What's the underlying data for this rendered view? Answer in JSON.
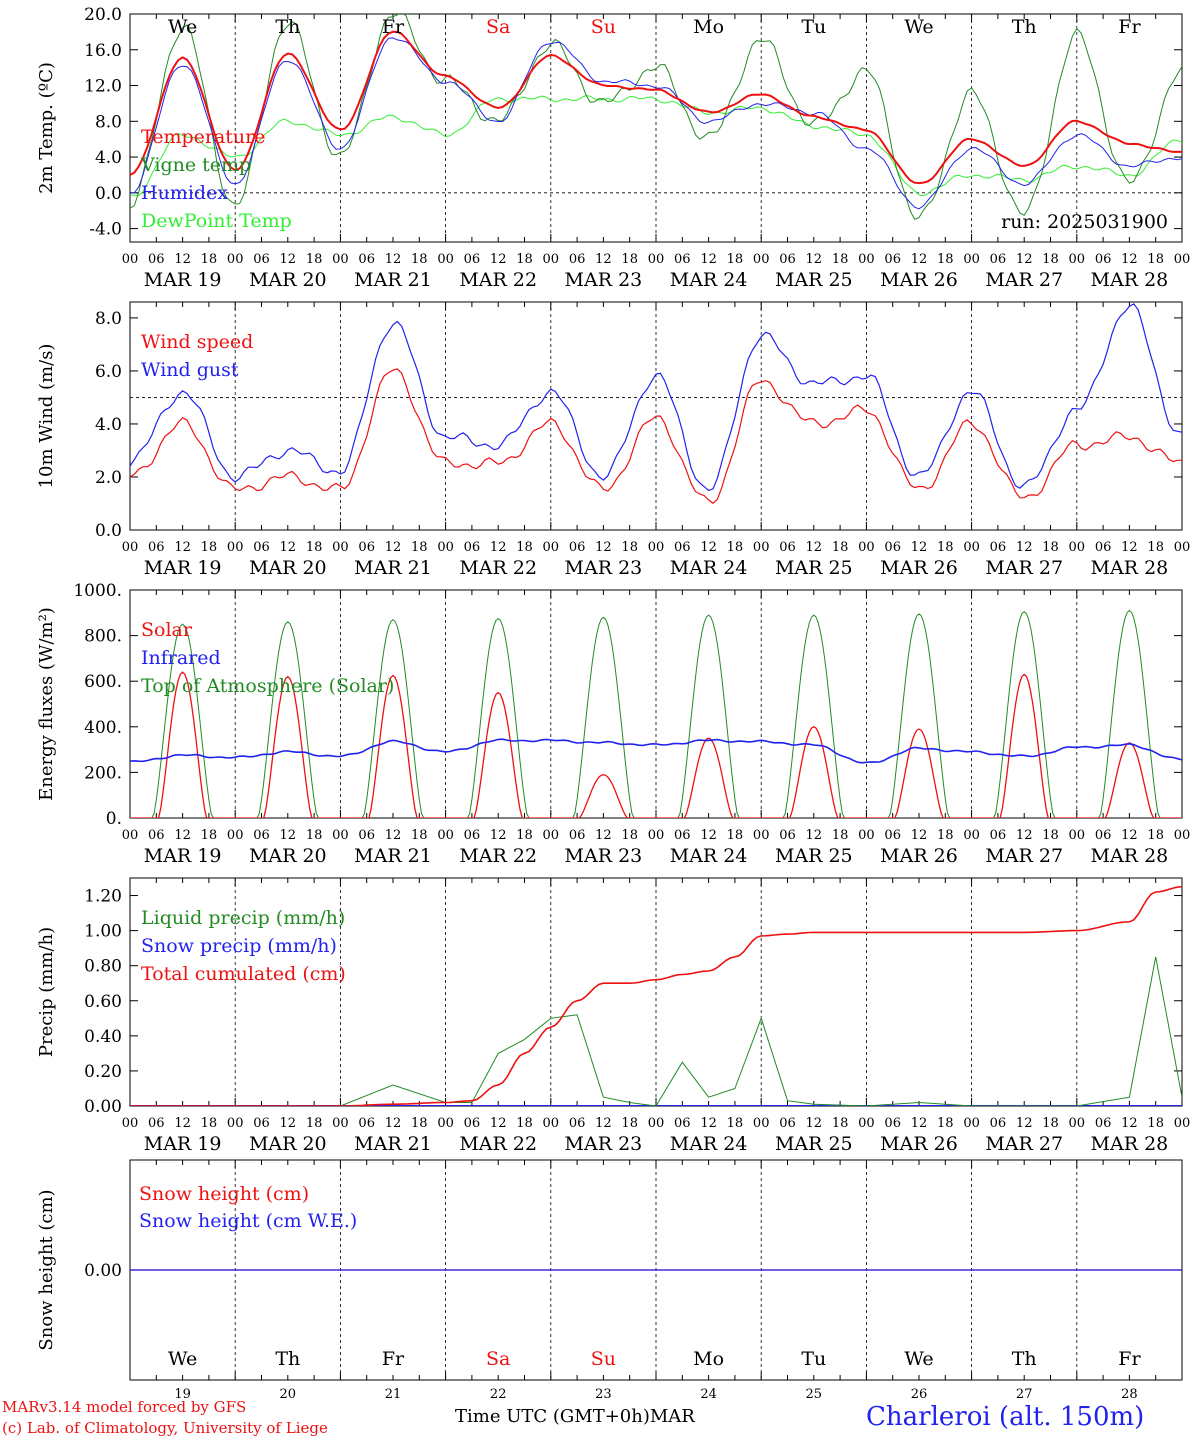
{
  "chart_data": [
    {
      "type": "line",
      "ylabel": "2m Temp. (ºC)",
      "ylim": [
        -5.5,
        20
      ],
      "yticks": [
        "20.0",
        "16.0",
        "12.0",
        "8.0",
        "4.0",
        "0.0",
        "-4.0"
      ],
      "tick_values": [
        20,
        16,
        12,
        8,
        4,
        0,
        -4
      ],
      "reference_line": 0,
      "annotation": "run: 2025031900",
      "x_hours": [
        0,
        12,
        24,
        36,
        48,
        60,
        72,
        84,
        96,
        108,
        120,
        132,
        144,
        156,
        168,
        180,
        192,
        204,
        216,
        228,
        240
      ],
      "series": [
        {
          "name": "Temperature",
          "color": "#ee1111",
          "values": [
            2.0,
            15.0,
            2.5,
            15.5,
            7.0,
            18.0,
            13.0,
            9.5,
            15.3,
            12.0,
            11.5,
            9.0,
            11.0,
            8.5,
            7.0,
            1.0,
            6.0,
            3.0,
            8.0,
            5.5,
            4.5
          ]
        },
        {
          "name": "Vigne temp",
          "color": "#228b22",
          "values": [
            -1.5,
            18.5,
            -1.5,
            19.0,
            4.0,
            20.0,
            12.5,
            8.0,
            16.5,
            10.0,
            14.0,
            6.0,
            17.0,
            7.5,
            13.5,
            -3.0,
            11.0,
            -2.5,
            17.5,
            1.0,
            13.5
          ]
        },
        {
          "name": "Humidex",
          "color": "#2222ee",
          "values": [
            0.0,
            14.5,
            1.0,
            15.0,
            5.0,
            17.5,
            12.5,
            8.0,
            17.0,
            12.5,
            12.0,
            8.0,
            10.0,
            9.0,
            5.0,
            -1.5,
            5.0,
            1.0,
            6.5,
            3.0,
            4.0
          ]
        },
        {
          "name": "DewPoint Temp",
          "color": "#33ee33",
          "values": [
            -0.5,
            6.5,
            4.0,
            8.0,
            6.5,
            8.5,
            6.5,
            10.5,
            10.5,
            10.5,
            10.5,
            9.0,
            9.5,
            7.5,
            6.5,
            0.0,
            2.0,
            1.5,
            3.0,
            2.0,
            6.0
          ]
        }
      ]
    },
    {
      "type": "line",
      "ylabel": "10m Wind (m/s)",
      "ylim": [
        0,
        8.6
      ],
      "yticks": [
        "8.0",
        "6.0",
        "4.0",
        "2.0",
        "0.0"
      ],
      "tick_values": [
        8,
        6,
        4,
        2,
        0
      ],
      "reference_line": 5,
      "x_hours": [
        0,
        12,
        24,
        36,
        48,
        60,
        72,
        84,
        96,
        108,
        120,
        132,
        144,
        156,
        168,
        180,
        192,
        204,
        216,
        228,
        240
      ],
      "series": [
        {
          "name": "Wind speed",
          "color": "#ee1111",
          "values": [
            2.0,
            4.0,
            1.5,
            2.0,
            1.5,
            6.0,
            2.5,
            2.5,
            4.0,
            1.5,
            4.2,
            1.0,
            5.6,
            4.0,
            4.5,
            1.5,
            4.0,
            1.2,
            3.2,
            3.5,
            2.5
          ]
        },
        {
          "name": "Wind gust",
          "color": "#2222ee",
          "values": [
            2.6,
            5.2,
            2.0,
            3.0,
            2.2,
            7.8,
            3.5,
            3.2,
            5.2,
            2.0,
            5.8,
            1.5,
            7.3,
            5.5,
            5.8,
            2.0,
            5.2,
            1.6,
            4.5,
            8.4,
            3.5
          ]
        }
      ]
    },
    {
      "type": "line",
      "ylabel": "Energy fluxes (W/m²)",
      "ylim": [
        0,
        1000
      ],
      "yticks": [
        "1000.",
        "800.",
        "600.",
        "400.",
        "200.",
        "0."
      ],
      "tick_values": [
        1000,
        800,
        600,
        400,
        200,
        0
      ],
      "x_hours": [
        0,
        12,
        24,
        36,
        48,
        60,
        72,
        84,
        96,
        108,
        120,
        132,
        144,
        156,
        168,
        180,
        192,
        204,
        216,
        228,
        240
      ],
      "daily_peaks": {
        "solar": [
          640,
          620,
          625,
          550,
          190,
          350,
          400,
          390,
          630,
          330
        ],
        "toa": [
          850,
          860,
          870,
          875,
          880,
          890,
          890,
          895,
          905,
          910
        ]
      },
      "series": [
        {
          "name": "Solar",
          "color": "#ee1111",
          "values": [
            0,
            640,
            0,
            620,
            0,
            625,
            0,
            550,
            0,
            190,
            0,
            350,
            0,
            400,
            0,
            390,
            0,
            630,
            0,
            330,
            0
          ]
        },
        {
          "name": "Infrared",
          "color": "#2222ee",
          "values": [
            245,
            275,
            265,
            290,
            270,
            335,
            290,
            340,
            340,
            330,
            320,
            340,
            335,
            320,
            240,
            305,
            290,
            270,
            310,
            320,
            255
          ]
        },
        {
          "name": "Top of Atmosphere (Solar)",
          "color": "#228b22",
          "values": [
            0,
            850,
            0,
            860,
            0,
            870,
            0,
            875,
            0,
            880,
            0,
            890,
            0,
            890,
            0,
            895,
            0,
            905,
            0,
            910,
            0
          ]
        }
      ]
    },
    {
      "type": "line",
      "ylabel": "Precip (mm/h)",
      "ylim": [
        0,
        1.3
      ],
      "yticks": [
        "1.20",
        "1.00",
        "0.80",
        "0.60",
        "0.40",
        "0.20",
        "0.00"
      ],
      "tick_values": [
        1.2,
        1.0,
        0.8,
        0.6,
        0.4,
        0.2,
        0.0
      ],
      "x_hours": [
        0,
        12,
        24,
        36,
        48,
        60,
        72,
        78,
        84,
        90,
        96,
        102,
        108,
        114,
        120,
        126,
        132,
        138,
        144,
        150,
        156,
        168,
        180,
        192,
        204,
        216,
        228,
        234,
        240
      ],
      "series": [
        {
          "name": "Liquid precip (mm/h)",
          "color": "#228b22",
          "values": [
            0,
            0,
            0,
            0,
            0,
            0.12,
            0.02,
            0.02,
            0.3,
            0.38,
            0.5,
            0.52,
            0.05,
            0.02,
            0,
            0.25,
            0.05,
            0.1,
            0.5,
            0.03,
            0.01,
            0,
            0.02,
            0,
            0,
            0,
            0.05,
            0.85,
            0.05
          ]
        },
        {
          "name": "Snow precip (mm/h)",
          "color": "#2222ee",
          "values": [
            0,
            0,
            0,
            0,
            0,
            0,
            0,
            0,
            0,
            0,
            0,
            0,
            0,
            0,
            0,
            0,
            0,
            0,
            0,
            0,
            0,
            0,
            0,
            0,
            0,
            0,
            0,
            0,
            0
          ]
        },
        {
          "name": "Total cumulated (cm)",
          "color": "#ee1111",
          "values": [
            0,
            0,
            0,
            0,
            0,
            0.01,
            0.02,
            0.03,
            0.12,
            0.3,
            0.45,
            0.6,
            0.7,
            0.7,
            0.72,
            0.75,
            0.77,
            0.85,
            0.97,
            0.98,
            0.99,
            0.99,
            0.99,
            0.99,
            0.99,
            1.0,
            1.05,
            1.22,
            1.25
          ]
        }
      ]
    },
    {
      "type": "line",
      "ylabel": "Snow height (cm)",
      "ylim": [
        -1,
        1
      ],
      "yticks": [
        "0.00"
      ],
      "tick_values": [
        0
      ],
      "x_hours": [
        0,
        240
      ],
      "series": [
        {
          "name": "Snow height (cm)",
          "color": "#ee1111",
          "values": [
            0,
            0
          ]
        },
        {
          "name": "Snow height (cm W.E.)",
          "color": "#2222ee",
          "values": [
            0,
            0
          ]
        }
      ]
    }
  ],
  "day_names": [
    "We",
    "Th",
    "Fr",
    "Sa",
    "Su",
    "Mo",
    "Tu",
    "We",
    "Th",
    "Fr"
  ],
  "weekend_index": [
    3,
    4
  ],
  "weekend_color": "#ee1111",
  "date_labels": [
    "MAR 19",
    "MAR 20",
    "MAR 21",
    "MAR 22",
    "MAR 23",
    "MAR 24",
    "MAR 25",
    "MAR 26",
    "MAR 27",
    "MAR 28"
  ],
  "day_numbers": [
    "19",
    "20",
    "21",
    "22",
    "23",
    "24",
    "25",
    "26",
    "27",
    "28"
  ],
  "hour_labels": [
    "00",
    "06",
    "12",
    "18"
  ],
  "last_hour_label": "00",
  "footer": {
    "model": "MARv3.14 model forced by GFS",
    "credit": "(c) Lab. of Climatology, University of Liege",
    "xlabel": "Time UTC (GMT+0h)",
    "month": "MAR",
    "station": "Charleroi (alt. 150m)"
  }
}
